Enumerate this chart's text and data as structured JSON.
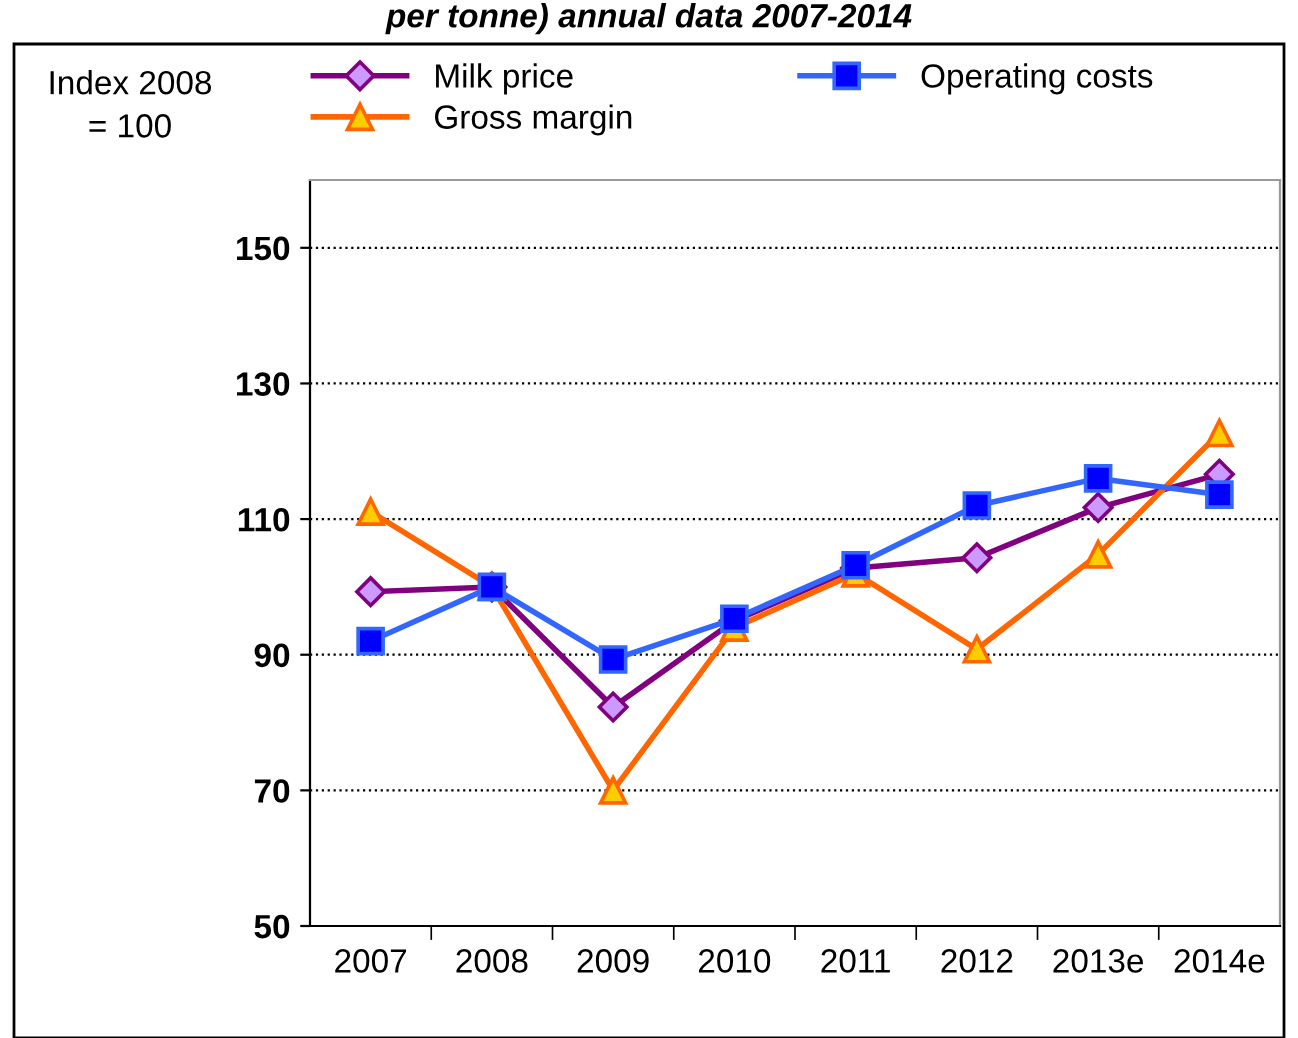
{
  "chart_data": {
    "type": "line",
    "title": "per tonne) annual data 2007-2014",
    "annotations": [
      "Index 2008\n= 100"
    ],
    "categories": [
      "2007",
      "2008",
      "2009",
      "2010",
      "2011",
      "2012",
      "2013e",
      "2014e"
    ],
    "series": [
      {
        "name": "Milk price",
        "color": "#800080",
        "marker": "diamond",
        "values": [
          99.3,
          100,
          82.3,
          95,
          102.8,
          104.3,
          111.7,
          116.6
        ]
      },
      {
        "name": "Gross margin",
        "color": "#ff6600",
        "marker": "triangle",
        "values": [
          111.1,
          100,
          70,
          94,
          102,
          90.8,
          104.8,
          122.7
        ]
      },
      {
        "name": "Operating costs",
        "color": "#3366ff",
        "marker": "square",
        "values": [
          92,
          100,
          89.3,
          95.3,
          103.2,
          112,
          116,
          113.6
        ]
      }
    ],
    "ylim": [
      50,
      160
    ],
    "yticks": [
      50,
      70,
      90,
      110,
      130,
      150
    ],
    "grid": "y",
    "legend": "top"
  }
}
